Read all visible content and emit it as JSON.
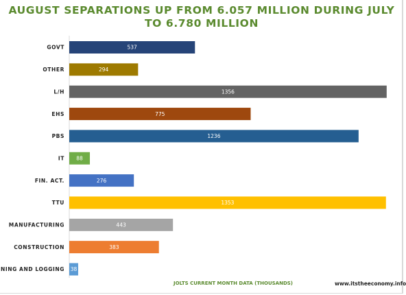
{
  "chart_data": {
    "type": "bar",
    "orientation": "horizontal",
    "title": "AUGUST SEPARATIONS UP FROM 6.057 MILLION DURING JULY TO 6.780 MILLION",
    "xlabel": "JOLTS CURRENT MONTH DATA (THOUSANDS)",
    "ylabel": "",
    "categories": [
      "GOVT",
      "OTHER",
      "L/H",
      "EHS",
      "PBS",
      "IT",
      "FIN. ACT.",
      "TTU",
      "MANUFACTURING",
      "CONSTRUCTION",
      "MINING AND LOGGING"
    ],
    "values": [
      537,
      294,
      1356,
      775,
      1236,
      88,
      276,
      1353,
      443,
      383,
      38
    ],
    "colors": [
      "#264478",
      "#9e7a00",
      "#636363",
      "#9e480e",
      "#255e91",
      "#70ad47",
      "#4472c4",
      "#ffc000",
      "#a5a5a5",
      "#ed7d31",
      "#5b9bd5"
    ],
    "xlim": [
      0,
      1380
    ],
    "grid": false,
    "legend": "none",
    "data_labels": true
  },
  "footer": {
    "source": "www.itstheeconomy.info"
  }
}
